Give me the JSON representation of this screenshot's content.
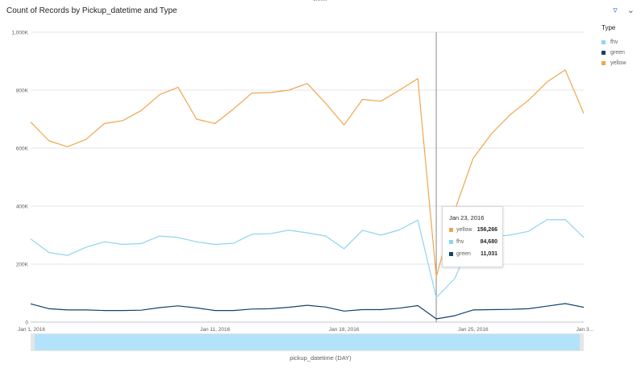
{
  "header": {
    "title": "Count of Records by Pickup_datetime and Type",
    "filter_icon": "filter-icon",
    "expand_icon": "chevron-down-icon"
  },
  "legend": {
    "title": "Type",
    "items": [
      {
        "name": "fhv",
        "color": "#8fd4f1"
      },
      {
        "name": "green",
        "color": "#12436d"
      },
      {
        "name": "yellow",
        "color": "#f0a64e"
      }
    ]
  },
  "tooltip": {
    "date": "Jan 23, 2016",
    "rows": [
      {
        "name": "yellow",
        "value": "156,266",
        "color": "#f0a64e"
      },
      {
        "name": "fhv",
        "value": "84,680",
        "color": "#8fd4f1"
      },
      {
        "name": "green",
        "value": "11,031",
        "color": "#12436d"
      }
    ]
  },
  "chart_data": {
    "type": "line",
    "title": "Count of Records by Pickup_datetime and Type",
    "xlabel": "pickup_datetime (DAY)",
    "ylabel": "",
    "x": [
      "2016-01-01",
      "2016-01-02",
      "2016-01-03",
      "2016-01-04",
      "2016-01-05",
      "2016-01-06",
      "2016-01-07",
      "2016-01-08",
      "2016-01-09",
      "2016-01-10",
      "2016-01-11",
      "2016-01-12",
      "2016-01-13",
      "2016-01-14",
      "2016-01-15",
      "2016-01-16",
      "2016-01-17",
      "2016-01-18",
      "2016-01-19",
      "2016-01-20",
      "2016-01-21",
      "2016-01-22",
      "2016-01-23",
      "2016-01-24",
      "2016-01-25",
      "2016-01-26",
      "2016-01-27",
      "2016-01-28",
      "2016-01-29",
      "2016-01-30",
      "2016-01-31"
    ],
    "xlim": [
      "2016-01-01",
      "2016-01-31"
    ],
    "x_ticks": [
      "Jan 1, 2016",
      "Jan 11, 2016",
      "Jan 18, 2016",
      "Jan 25, 2016",
      "Jan 3..."
    ],
    "ylim": [
      0,
      1000000
    ],
    "y_ticks": [
      "0",
      "200K",
      "400K",
      "600K",
      "800K",
      "1,000K"
    ],
    "grid": true,
    "legend_position": "right",
    "hover_date": "2016-01-23",
    "series": [
      {
        "name": "yellow",
        "color": "#f0a64e",
        "values": [
          690000,
          625000,
          605000,
          630000,
          685000,
          695000,
          730000,
          785000,
          810000,
          700000,
          685000,
          735000,
          790000,
          792000,
          800000,
          823000,
          755000,
          680000,
          768000,
          762000,
          800000,
          840000,
          156266,
          385000,
          565000,
          650000,
          715000,
          765000,
          828000,
          870000,
          720000
        ]
      },
      {
        "name": "fhv",
        "color": "#8fd4f1",
        "values": [
          287000,
          240000,
          230000,
          258000,
          277000,
          268000,
          271000,
          297000,
          292000,
          277000,
          268000,
          272000,
          303000,
          305000,
          317000,
          308000,
          297000,
          253000,
          317000,
          300000,
          318000,
          352000,
          84680,
          150000,
          293000,
          295000,
          300000,
          313000,
          353000,
          354000,
          292000
        ]
      },
      {
        "name": "green",
        "color": "#12436d",
        "values": [
          63000,
          46000,
          42000,
          42000,
          40000,
          40000,
          41000,
          50000,
          56000,
          49000,
          40000,
          40000,
          45000,
          46000,
          51000,
          58000,
          52000,
          38000,
          43000,
          43000,
          48000,
          57000,
          11031,
          22000,
          42000,
          43000,
          44000,
          46000,
          55000,
          64000,
          51000
        ]
      }
    ]
  }
}
